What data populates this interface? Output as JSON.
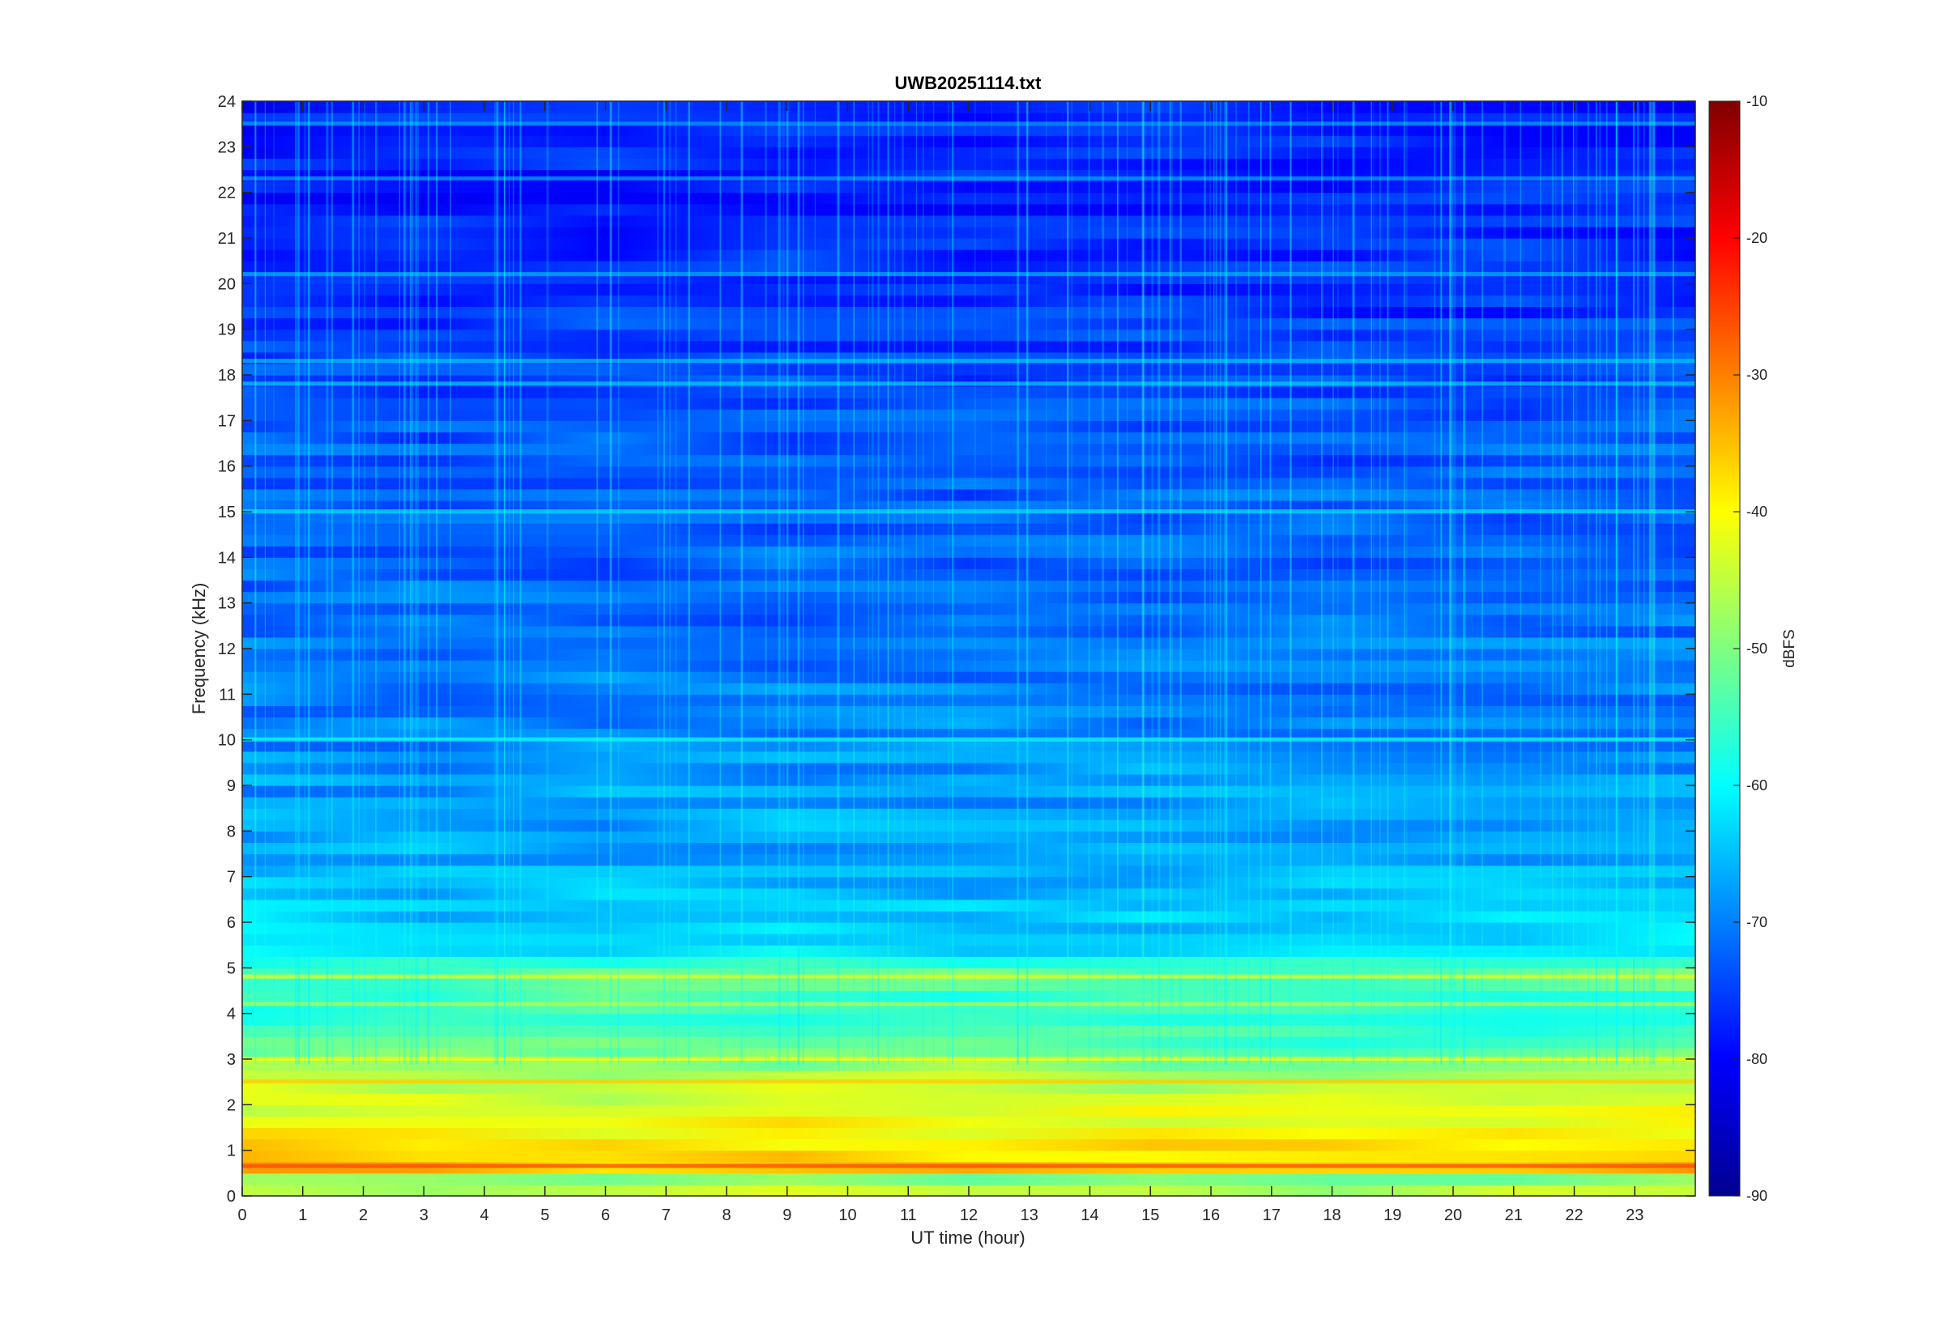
{
  "chart_data": {
    "type": "heatmap",
    "title": "UWB20251114.txt",
    "xlabel": "UT time (hour)",
    "ylabel": "Frequency (kHz)",
    "xlim": [
      0,
      24
    ],
    "ylim": [
      0,
      24
    ],
    "x_ticks": [
      "0",
      "1",
      "2",
      "3",
      "4",
      "5",
      "6",
      "7",
      "8",
      "9",
      "10",
      "11",
      "12",
      "13",
      "14",
      "15",
      "16",
      "17",
      "18",
      "19",
      "20",
      "21",
      "22",
      "23"
    ],
    "y_ticks": [
      "0",
      "1",
      "2",
      "3",
      "4",
      "5",
      "6",
      "7",
      "8",
      "9",
      "10",
      "11",
      "12",
      "13",
      "14",
      "15",
      "16",
      "17",
      "18",
      "19",
      "20",
      "21",
      "22",
      "23",
      "24"
    ],
    "colorbar": {
      "label": "dBFS",
      "colormap": "jet",
      "range": [
        -90,
        -10
      ],
      "ticks": [
        "-10",
        "-20",
        "-30",
        "-40",
        "-50",
        "-60",
        "-70",
        "-80",
        "-90"
      ]
    },
    "intensity_profile_dbfs": [
      {
        "freq_khz": 0.1,
        "level": -45
      },
      {
        "freq_khz": 0.3,
        "level": -55
      },
      {
        "freq_khz": 0.6,
        "level": -35
      },
      {
        "freq_khz": 1.0,
        "level": -38
      },
      {
        "freq_khz": 1.5,
        "level": -40
      },
      {
        "freq_khz": 2.0,
        "level": -42
      },
      {
        "freq_khz": 2.5,
        "level": -46
      },
      {
        "freq_khz": 3.0,
        "level": -50
      },
      {
        "freq_khz": 3.5,
        "level": -55
      },
      {
        "freq_khz": 4.0,
        "level": -57
      },
      {
        "freq_khz": 4.8,
        "level": -52
      },
      {
        "freq_khz": 5.5,
        "level": -63
      },
      {
        "freq_khz": 7.0,
        "level": -66
      },
      {
        "freq_khz": 9.0,
        "level": -68
      },
      {
        "freq_khz": 12.0,
        "level": -71
      },
      {
        "freq_khz": 16.0,
        "level": -73
      },
      {
        "freq_khz": 20.0,
        "level": -76
      },
      {
        "freq_khz": 24.0,
        "level": -78
      }
    ],
    "notable_bands_khz": [
      0.65,
      2.5,
      3.0,
      4.2,
      4.8,
      10.0,
      15.0,
      17.8,
      18.3,
      20.2,
      22.3,
      23.5
    ],
    "grid": false,
    "colormap_stops": [
      "#00008f",
      "#0000ff",
      "#00ffff",
      "#ffff00",
      "#ff0000",
      "#800000"
    ]
  }
}
